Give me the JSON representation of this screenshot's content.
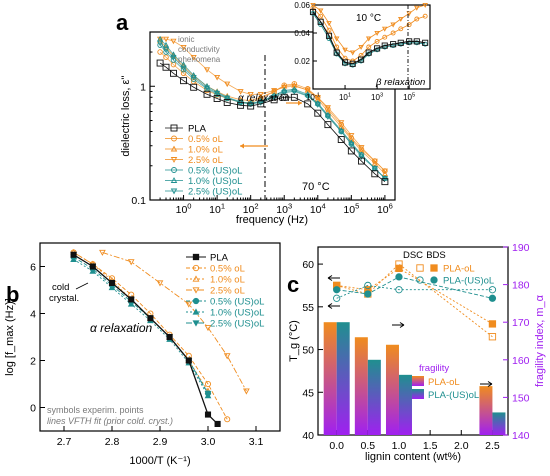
{
  "colors": {
    "pla": "#111111",
    "oL": "#f08c1e",
    "usoL": "#1f8f8f",
    "violet": "#a020f0",
    "black": "#000000",
    "grey": "#7a7a7a"
  },
  "panel_labels": {
    "a": "a",
    "b": "b",
    "c": "c"
  },
  "chart_data": [
    {
      "id": "a-main",
      "type": "line",
      "xlabel": "frequency (Hz)",
      "ylabel": "dielectric loss, ε''",
      "xscale": "log",
      "yscale": "log",
      "xlim": [
        0.1,
        2000000
      ],
      "ylim": [
        0.1,
        3
      ],
      "x_ticks": [
        "10^0",
        "10^1",
        "10^2",
        "10^3",
        "10^4",
        "10^5",
        "10^6"
      ],
      "y_ticks": [
        "0.1",
        "1"
      ],
      "temperature_label": "70 °C",
      "annotations": {
        "alpha": "α relaxation",
        "ionic": [
          "ionic",
          "conductivity",
          "phenomena"
        ]
      },
      "legend_position": "bottom-left",
      "x": [
        0.2,
        0.3,
        0.5,
        1,
        2,
        5,
        10,
        20,
        50,
        100,
        200,
        500,
        1000,
        2000,
        5000,
        10000,
        20000,
        50000,
        100000,
        200000,
        500000,
        1000000
      ],
      "series": [
        {
          "name": "PLA",
          "values": [
            1.6,
            1.47,
            1.3,
            1.12,
            0.98,
            0.85,
            0.78,
            0.72,
            0.68,
            0.67,
            0.7,
            0.76,
            0.8,
            0.8,
            0.7,
            0.58,
            0.46,
            0.34,
            0.27,
            0.22,
            0.17,
            0.145
          ]
        },
        {
          "name": "0.5% oL",
          "values": [
            2.0,
            1.8,
            1.55,
            1.3,
            1.1,
            0.92,
            0.84,
            0.78,
            0.72,
            0.72,
            0.78,
            0.9,
            1.02,
            1.05,
            0.95,
            0.8,
            0.63,
            0.46,
            0.35,
            0.28,
            0.22,
            0.18
          ]
        },
        {
          "name": "1.0% oL",
          "values": [
            2.5,
            2.2,
            1.85,
            1.5,
            1.23,
            1.0,
            0.9,
            0.82,
            0.76,
            0.75,
            0.8,
            0.9,
            1.0,
            1.02,
            0.92,
            0.77,
            0.6,
            0.44,
            0.34,
            0.27,
            0.21,
            0.17
          ]
        },
        {
          "name": "2.5% oL",
          "values": [
            2.6,
            2.6,
            2.5,
            2.2,
            1.8,
            1.4,
            1.2,
            1.05,
            0.9,
            0.85,
            0.85,
            0.92,
            0.98,
            1.0,
            0.93,
            0.8,
            0.65,
            0.48,
            0.37,
            0.29,
            0.22,
            0.18
          ]
        },
        {
          "name": "0.5% (US)oL",
          "values": [
            2.3,
            2.0,
            1.7,
            1.4,
            1.15,
            0.95,
            0.85,
            0.78,
            0.72,
            0.7,
            0.73,
            0.82,
            0.9,
            0.92,
            0.83,
            0.7,
            0.55,
            0.4,
            0.31,
            0.25,
            0.19,
            0.155
          ]
        },
        {
          "name": "1.0% (US)oL",
          "values": [
            2.6,
            2.3,
            1.9,
            1.55,
            1.25,
            1.0,
            0.89,
            0.8,
            0.73,
            0.71,
            0.74,
            0.83,
            0.92,
            0.94,
            0.85,
            0.71,
            0.56,
            0.41,
            0.32,
            0.25,
            0.19,
            0.155
          ]
        },
        {
          "name": "2.5% (US)oL",
          "values": [
            2.4,
            2.1,
            1.8,
            1.45,
            1.2,
            0.97,
            0.87,
            0.79,
            0.72,
            0.7,
            0.72,
            0.8,
            0.88,
            0.9,
            0.82,
            0.69,
            0.54,
            0.4,
            0.31,
            0.24,
            0.19,
            0.155
          ]
        }
      ]
    },
    {
      "id": "a-inset",
      "type": "line",
      "temperature_label": "10 °C",
      "annotation": "β relaxation",
      "xscale": "log",
      "xlim": [
        0.1,
        2000000
      ],
      "ylim": [
        0,
        0.06
      ],
      "x_ticks": [
        "10^-1",
        "10^1",
        "10^3",
        "10^5"
      ],
      "y_ticks": [
        "0.00",
        "0.02",
        "0.04",
        "0.06"
      ],
      "x": [
        0.1,
        0.3,
        1,
        3,
        10,
        30,
        100,
        300,
        1000,
        3000,
        10000,
        30000,
        100000,
        300000,
        1000000
      ],
      "series": [
        {
          "name": "PLA",
          "values": [
            0.055,
            0.048,
            0.038,
            0.026,
            0.019,
            0.018,
            0.021,
            0.026,
            0.029,
            0.031,
            0.032,
            0.033,
            0.034,
            0.034,
            0.033
          ]
        },
        {
          "name": "0.5% oL",
          "values": [
            0.058,
            0.052,
            0.042,
            0.03,
            0.022,
            0.02,
            0.024,
            0.03,
            0.034,
            0.037,
            0.04,
            0.043,
            0.046,
            0.05,
            0.052
          ]
        },
        {
          "name": "2.5% oL",
          "values": [
            0.06,
            0.056,
            0.047,
            0.036,
            0.028,
            0.026,
            0.03,
            0.036,
            0.04,
            0.043,
            0.046,
            0.05,
            0.054,
            0.058,
            0.06
          ]
        },
        {
          "name": "1.0% (US)oL",
          "values": [
            0.054,
            0.046,
            0.036,
            0.025,
            0.018,
            0.017,
            0.02,
            0.025,
            0.028,
            0.03,
            0.031,
            0.032,
            0.033,
            0.033,
            0.032
          ]
        }
      ]
    },
    {
      "id": "b",
      "type": "scatter",
      "xlabel": "1000/T (K⁻¹)",
      "ylabel": "log [f_max (Hz)]",
      "xlim": [
        2.65,
        3.15
      ],
      "ylim": [
        -1,
        7
      ],
      "x_ticks": [
        "2.7",
        "2.8",
        "2.9",
        "3.0",
        "3.1"
      ],
      "y_ticks": [
        "0",
        "2",
        "4",
        "6"
      ],
      "annotations": {
        "alpha": "α relaxation",
        "cold": [
          "cold",
          "crystal."
        ],
        "note1": "symbols experim. points",
        "note2": "lines VFTH fit (prior cold. cryst.)"
      },
      "legend_position": "top-right",
      "series": [
        {
          "name": "PLA",
          "x": [
            2.72,
            2.76,
            2.8,
            2.84,
            2.88,
            2.92,
            2.96,
            3.0,
            3.02
          ],
          "y": [
            6.5,
            6.0,
            5.3,
            4.6,
            3.8,
            3.0,
            2.0,
            -0.3,
            -0.7
          ]
        },
        {
          "name": "0.5% oL",
          "x": [
            2.72,
            2.76,
            2.8,
            2.84,
            2.88,
            2.92,
            2.96,
            3.0,
            3.04
          ],
          "y": [
            6.6,
            6.1,
            5.5,
            4.8,
            4.0,
            3.1,
            2.2,
            1.0,
            -0.5
          ]
        },
        {
          "name": "1.0% oL",
          "x": [
            2.72,
            2.76,
            2.8,
            2.84,
            2.88,
            2.92,
            2.96,
            3.0
          ],
          "y": [
            6.6,
            6.1,
            5.4,
            4.6,
            3.8,
            3.0,
            2.0,
            0.7
          ]
        },
        {
          "name": "2.5% oL",
          "x": [
            2.78,
            2.84,
            2.9,
            2.96,
            3.0,
            3.04,
            3.08
          ],
          "y": [
            6.6,
            6.2,
            5.3,
            4.4,
            3.4,
            2.2,
            0.7
          ]
        },
        {
          "name": "0.5% (US)oL",
          "x": [
            2.72,
            2.76,
            2.8,
            2.84,
            2.88,
            2.92,
            2.96,
            3.0
          ],
          "y": [
            6.4,
            5.9,
            5.2,
            4.5,
            3.8,
            3.0,
            2.0,
            0.6
          ]
        },
        {
          "name": "1.0% (US)oL",
          "x": [
            2.72,
            2.76,
            2.8,
            2.84,
            2.88,
            2.92,
            2.96,
            3.0
          ],
          "y": [
            6.3,
            5.8,
            5.1,
            4.4,
            3.7,
            2.9,
            1.9,
            0.5
          ]
        },
        {
          "name": "2.5% (US)oL",
          "x": [
            2.72,
            2.76,
            2.8,
            2.84,
            2.88,
            2.92,
            2.96,
            3.0
          ],
          "y": [
            6.5,
            6.0,
            5.3,
            4.6,
            3.8,
            3.0,
            2.0,
            0.6
          ]
        }
      ]
    },
    {
      "id": "c",
      "type": "bar",
      "xlabel": "lignin content (wt%)",
      "ylabel": "T_g (°C)",
      "y2label": "fragility index, m_α",
      "xlim": [
        -0.3,
        2.75
      ],
      "ylim": [
        40,
        62
      ],
      "y2lim": [
        140,
        190
      ],
      "x_ticks": [
        "0.0",
        "0.5",
        "1.0",
        "1.5",
        "2.0",
        "2.5"
      ],
      "y_ticks": [
        "40",
        "45",
        "50",
        "55",
        "60"
      ],
      "y2_ticks": [
        "140",
        "150",
        "160",
        "170",
        "180",
        "190"
      ],
      "legend_tg": {
        "header": [
          "DSC",
          "BDS"
        ],
        "items": [
          "PLA-oL",
          "PLA-(US)oL"
        ]
      },
      "legend_fragility": {
        "title": "fragility",
        "items": [
          "PLA-oL",
          "PLA-(US)oL"
        ]
      },
      "x": [
        0.0,
        0.5,
        1.0,
        2.5
      ],
      "series": [
        {
          "name": "fragility PLA-oL",
          "kind": "bar",
          "axis": "y2",
          "values": [
            170,
            166,
            164,
            153
          ]
        },
        {
          "name": "fragility PLA-(US)oL",
          "kind": "bar",
          "axis": "y2",
          "values": [
            170,
            160,
            156,
            146
          ]
        },
        {
          "name": "PLA-oL DSC",
          "kind": "open-square",
          "axis": "y",
          "values": [
            57.5,
            56.5,
            60.0,
            51.5
          ]
        },
        {
          "name": "PLA-oL BDS",
          "kind": "filled-square",
          "axis": "y",
          "values": [
            57.5,
            57.0,
            59.5,
            53.0
          ]
        },
        {
          "name": "PLA-(US)oL DSC",
          "kind": "open-circle",
          "axis": "y",
          "values": [
            56.0,
            57.5,
            57.0,
            57.0
          ]
        },
        {
          "name": "PLA-(US)oL BDS",
          "kind": "filled-circle",
          "axis": "y",
          "values": [
            57.0,
            56.5,
            58.5,
            56.0
          ]
        }
      ]
    }
  ]
}
